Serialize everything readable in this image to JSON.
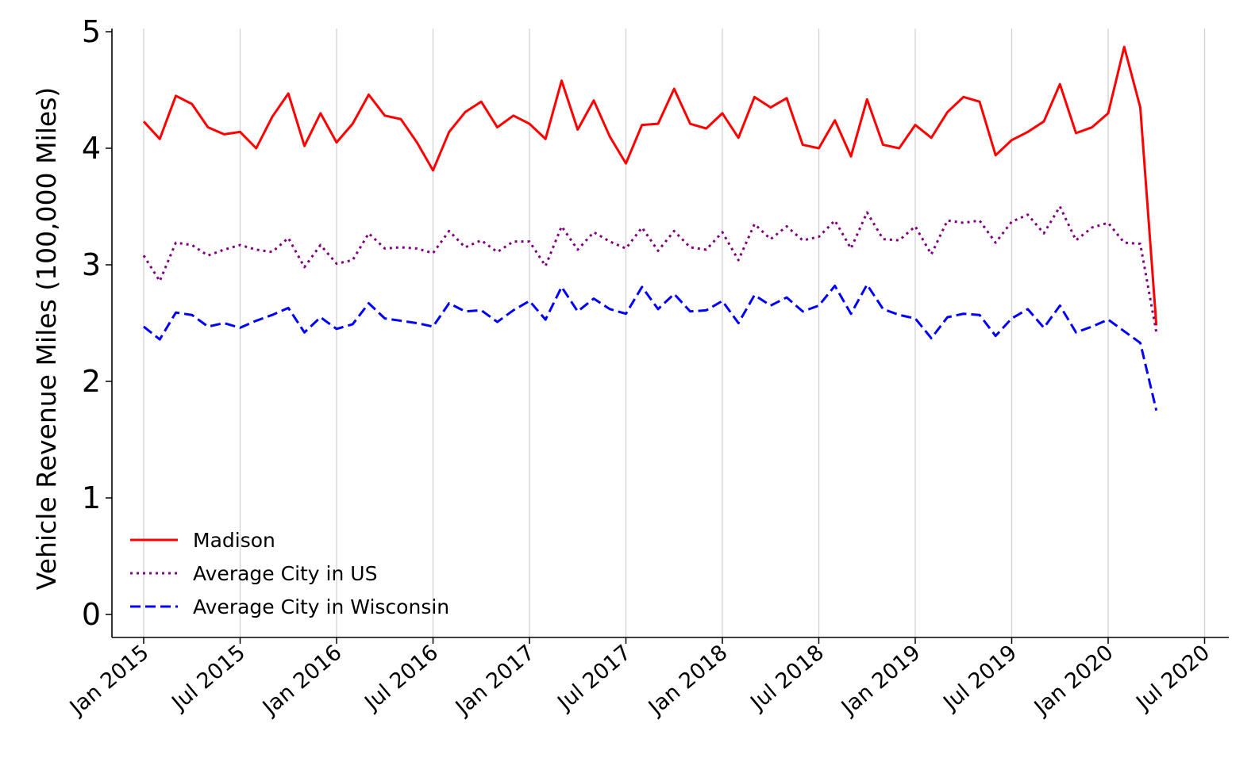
{
  "chart_data": {
    "type": "line",
    "title": "",
    "xlabel": "",
    "ylabel": "Vehicle Revenue Miles (100,000 Miles)",
    "ylim": [
      0,
      5
    ],
    "yticks": [
      0,
      1,
      2,
      3,
      4,
      5
    ],
    "xticks": [
      "Jan 2015",
      "Jul 2015",
      "Jan 2016",
      "Jul 2016",
      "Jan 2017",
      "Jul 2017",
      "Jan 2018",
      "Jul 2018",
      "Jan 2019",
      "Jul 2019",
      "Jan 2020",
      "Jul 2020"
    ],
    "grid": "vertical",
    "legend_position": "lower-left",
    "x": [
      "Jan 2015",
      "Feb 2015",
      "Mar 2015",
      "Apr 2015",
      "May 2015",
      "Jun 2015",
      "Jul 2015",
      "Aug 2015",
      "Sep 2015",
      "Oct 2015",
      "Nov 2015",
      "Dec 2015",
      "Jan 2016",
      "Feb 2016",
      "Mar 2016",
      "Apr 2016",
      "May 2016",
      "Jun 2016",
      "Jul 2016",
      "Aug 2016",
      "Sep 2016",
      "Oct 2016",
      "Nov 2016",
      "Dec 2016",
      "Jan 2017",
      "Feb 2017",
      "Mar 2017",
      "Apr 2017",
      "May 2017",
      "Jun 2017",
      "Jul 2017",
      "Aug 2017",
      "Sep 2017",
      "Oct 2017",
      "Nov 2017",
      "Dec 2017",
      "Jan 2018",
      "Feb 2018",
      "Mar 2018",
      "Apr 2018",
      "May 2018",
      "Jun 2018",
      "Jul 2018",
      "Aug 2018",
      "Sep 2018",
      "Oct 2018",
      "Nov 2018",
      "Dec 2018",
      "Jan 2019",
      "Feb 2019",
      "Mar 2019",
      "Apr 2019",
      "May 2019",
      "Jun 2019",
      "Jul 2019",
      "Aug 2019",
      "Sep 2019",
      "Oct 2019",
      "Nov 2019",
      "Dec 2019",
      "Jan 2020",
      "Feb 2020",
      "Mar 2020",
      "Apr 2020",
      "May 2020"
    ],
    "series": [
      {
        "name": "Madison",
        "color": "#ff0000",
        "style": "solid",
        "values": [
          4.23,
          4.08,
          4.45,
          4.38,
          4.18,
          4.12,
          4.14,
          4.0,
          4.27,
          4.47,
          4.02,
          4.3,
          4.05,
          4.21,
          4.46,
          4.28,
          4.25,
          4.05,
          3.81,
          4.14,
          4.31,
          4.4,
          4.18,
          4.28,
          4.21,
          4.08,
          4.58,
          4.16,
          4.41,
          4.1,
          3.87,
          4.2,
          4.21,
          4.51,
          4.21,
          4.17,
          4.3,
          4.09,
          4.44,
          4.35,
          4.43,
          4.03,
          4.0,
          4.24,
          3.93,
          4.42,
          4.03,
          4.0,
          4.2,
          4.09,
          4.31,
          4.44,
          4.4,
          3.94,
          4.07,
          4.14,
          4.23,
          4.55,
          4.13,
          4.18,
          4.3,
          4.87,
          4.35,
          2.48,
          null
        ]
      },
      {
        "name": "Average City in US",
        "color": "#800080",
        "style": "dotted",
        "values": [
          3.08,
          2.86,
          3.19,
          3.17,
          3.08,
          3.13,
          3.17,
          3.13,
          3.11,
          3.23,
          2.98,
          3.17,
          3.01,
          3.04,
          3.27,
          3.14,
          3.15,
          3.14,
          3.1,
          3.29,
          3.15,
          3.21,
          3.11,
          3.2,
          3.2,
          2.99,
          3.33,
          3.13,
          3.28,
          3.2,
          3.14,
          3.32,
          3.12,
          3.29,
          3.15,
          3.13,
          3.28,
          3.04,
          3.35,
          3.22,
          3.33,
          3.21,
          3.24,
          3.38,
          3.14,
          3.45,
          3.22,
          3.21,
          3.33,
          3.09,
          3.38,
          3.36,
          3.38,
          3.19,
          3.37,
          3.43,
          3.27,
          3.5,
          3.21,
          3.32,
          3.36,
          3.19,
          3.18,
          2.42,
          null
        ]
      },
      {
        "name": "Average City in Wisconsin",
        "color": "#0000ff",
        "style": "dashed",
        "values": [
          2.47,
          2.36,
          2.59,
          2.57,
          2.47,
          2.5,
          2.46,
          2.52,
          2.57,
          2.63,
          2.42,
          2.55,
          2.45,
          2.49,
          2.67,
          2.54,
          2.52,
          2.5,
          2.47,
          2.67,
          2.6,
          2.61,
          2.51,
          2.61,
          2.69,
          2.53,
          2.81,
          2.6,
          2.71,
          2.62,
          2.58,
          2.81,
          2.62,
          2.75,
          2.6,
          2.61,
          2.69,
          2.5,
          2.74,
          2.65,
          2.72,
          2.6,
          2.65,
          2.82,
          2.58,
          2.83,
          2.62,
          2.57,
          2.54,
          2.37,
          2.55,
          2.58,
          2.57,
          2.39,
          2.54,
          2.62,
          2.46,
          2.65,
          2.42,
          2.47,
          2.53,
          2.43,
          2.33,
          1.75,
          null
        ]
      }
    ]
  }
}
